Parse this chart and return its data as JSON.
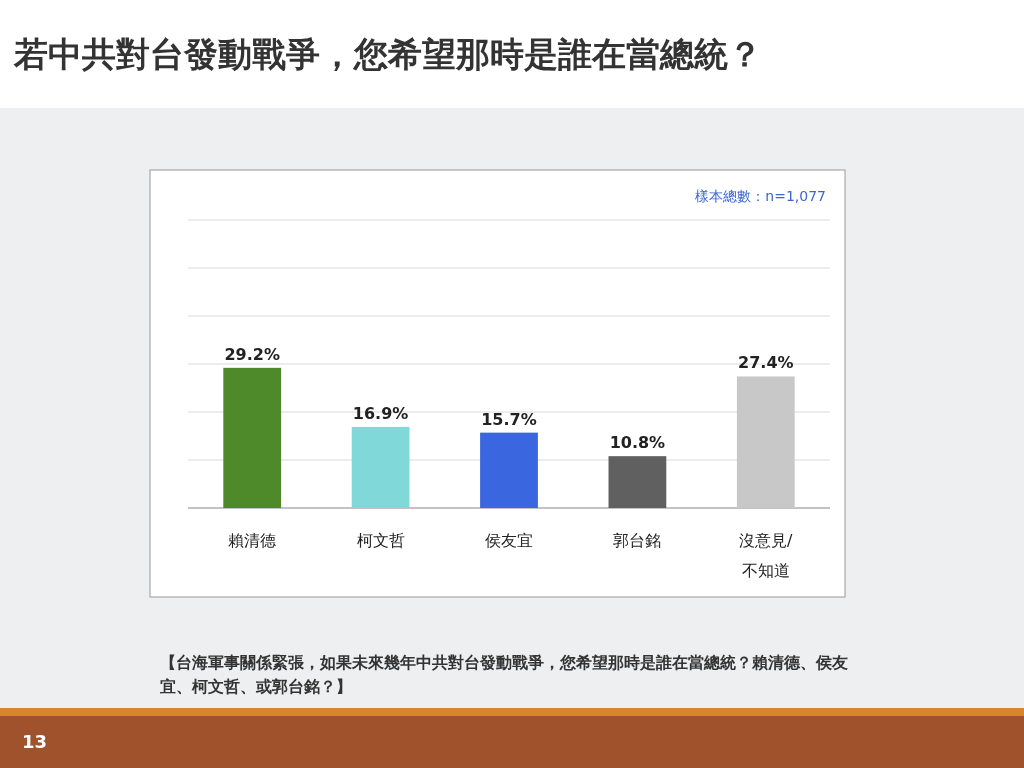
{
  "chart_data": {
    "type": "bar",
    "title": "若中共對台發動戰爭，您希望那時是誰在當總統？",
    "categories": [
      "賴清德",
      "柯文哲",
      "侯友宜",
      "郭台銘",
      "沒意見/不知道"
    ],
    "values": [
      29.2,
      16.9,
      15.7,
      10.8,
      27.4
    ],
    "colors": [
      "#4e8a2a",
      "#80d8d8",
      "#3a66e0",
      "#606060",
      "#c8c8c8"
    ],
    "value_labels": [
      "29.2%",
      "16.9%",
      "15.7%",
      "10.8%",
      "27.4%"
    ],
    "ylim": [
      0,
      60
    ],
    "yticks": [
      {
        "value": 0,
        "label": null
      },
      {
        "value": 10,
        "label": null
      },
      {
        "value": 20,
        "label": null
      },
      {
        "value": 30,
        "label": null
      },
      {
        "value": 40,
        "label": null
      },
      {
        "value": 50,
        "label": null
      },
      {
        "value": 60,
        "label": null
      }
    ],
    "tick_labels": "x",
    "grid": "y",
    "annotations": [
      "樣本總數：n=1,077",
      "【台海軍事關係緊張，如果未來幾年中共對台發動戰爭，您希望那時是誰在當總統？賴清德、侯友宜、柯文哲、或郭台銘？】",
      "13"
    ]
  }
}
